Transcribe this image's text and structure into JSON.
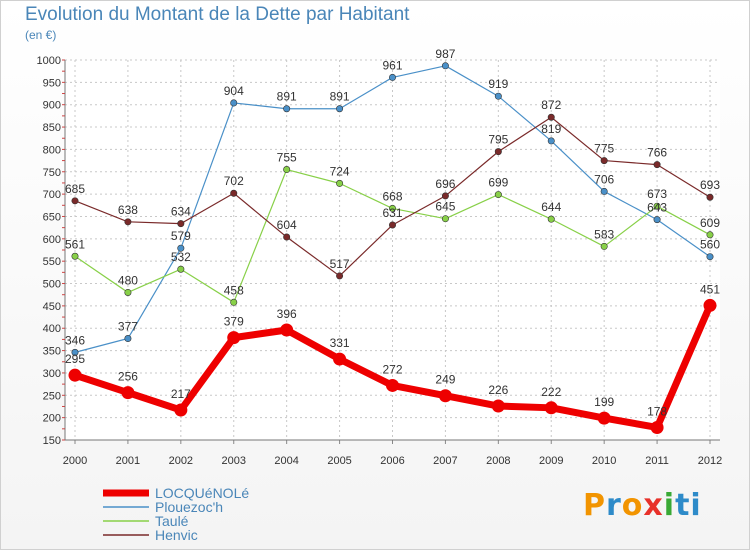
{
  "title": "Evolution du Montant de la Dette par Habitant",
  "subtitle": "(en €)",
  "logo": [
    "P",
    "r",
    "o",
    "x",
    "i",
    "ti"
  ],
  "chart_data": {
    "type": "line",
    "title": "Evolution du Montant de la Dette par Habitant",
    "ylabel": "(en €)",
    "x": [
      "2000",
      "2001",
      "2002",
      "2003",
      "2004",
      "2005",
      "2006",
      "2007",
      "2008",
      "2009",
      "2010",
      "2011",
      "2012"
    ],
    "yticks": [
      150,
      200,
      250,
      300,
      350,
      400,
      450,
      500,
      550,
      600,
      650,
      700,
      750,
      800,
      850,
      900,
      950,
      1000
    ],
    "ylim": [
      150,
      1000
    ],
    "grid": true,
    "legend": "bottom-left",
    "series": [
      {
        "name": "LOCQUéNOLé",
        "color": "#ee0000",
        "values": [
          295,
          256,
          217,
          379,
          396,
          331,
          272,
          249,
          226,
          222,
          199,
          178,
          451
        ]
      },
      {
        "name": "Plouezoc'h",
        "color": "#4a90c8",
        "values": [
          346,
          377,
          579,
          904,
          891,
          891,
          961,
          987,
          919,
          819,
          706,
          643,
          560
        ]
      },
      {
        "name": "Taulé",
        "color": "#88d048",
        "values": [
          561,
          480,
          532,
          458,
          755,
          724,
          668,
          645,
          699,
          644,
          583,
          673,
          609
        ]
      },
      {
        "name": "Henvic",
        "color": "#7a2a2a",
        "values": [
          685,
          638,
          634,
          702,
          604,
          517,
          631,
          696,
          795,
          872,
          775,
          766,
          693
        ]
      }
    ]
  }
}
